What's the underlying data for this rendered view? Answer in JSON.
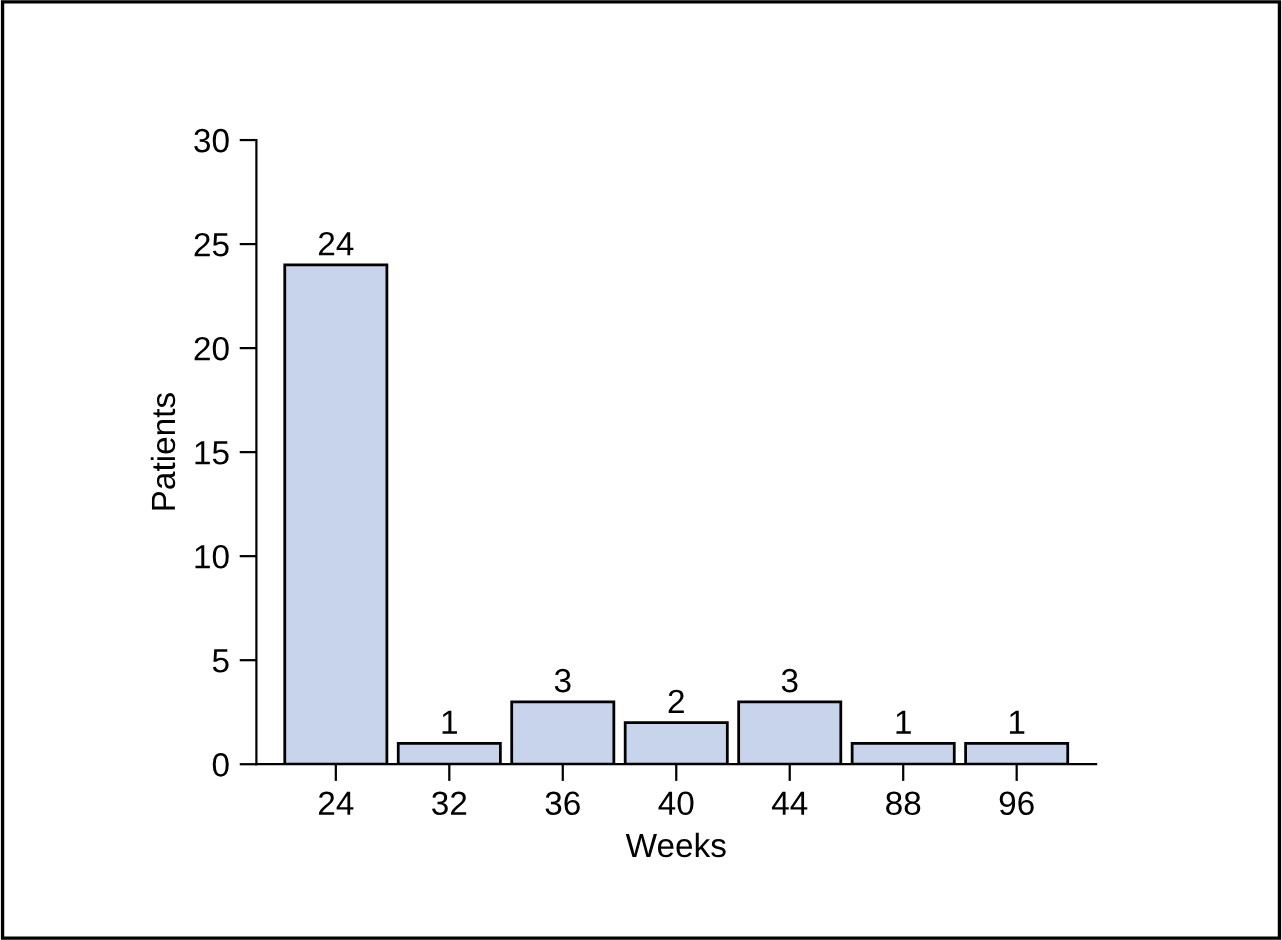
{
  "chart_data": {
    "type": "bar",
    "xlabel": "Weeks",
    "ylabel": "Patients",
    "categories": [
      "24",
      "32",
      "36",
      "40",
      "44",
      "88",
      "96"
    ],
    "values": [
      24,
      1,
      3,
      2,
      3,
      1,
      1
    ],
    "color": "#c7d4ec",
    "ylim": [
      0,
      30
    ],
    "yticks": [
      0,
      5,
      10,
      15,
      20,
      25,
      30
    ],
    "data_labels": true,
    "grid": false,
    "legend": false
  }
}
